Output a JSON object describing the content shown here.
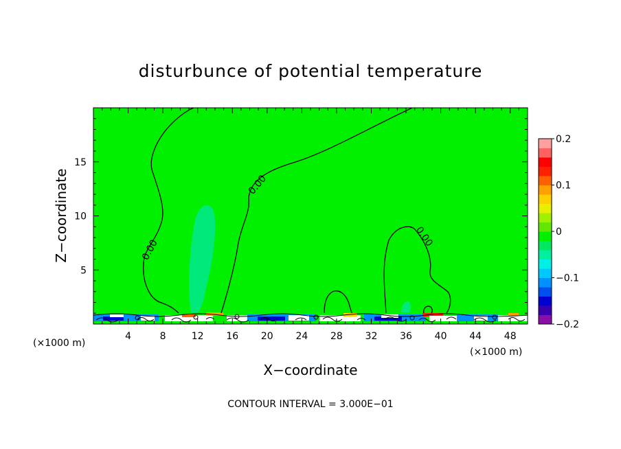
{
  "chart_data": {
    "type": "heatmap",
    "title": "disturbunce of potential temperature",
    "xlabel": "X−coordinate",
    "ylabel": "Z−coordinate",
    "x_unit_left": "(×1000 m)",
    "x_unit_right": "(×1000 m)",
    "xlim": [
      0,
      50
    ],
    "ylim": [
      0,
      20
    ],
    "x_ticks": [
      4,
      8,
      12,
      16,
      20,
      24,
      28,
      32,
      36,
      40,
      44,
      48
    ],
    "y_ticks": [
      5,
      10,
      15
    ],
    "contour_interval_text": "CONTOUR INTERVAL = 3.000E−01",
    "contour_label": "0.00",
    "field_value_main": 0.0,
    "colorbar": {
      "ticks": [
        {
          "value": 0.2,
          "label": "0.2"
        },
        {
          "value": 0.1,
          "label": "0.1"
        },
        {
          "value": 0,
          "label": "0"
        },
        {
          "value": -0.1,
          "label": "−0.1"
        },
        {
          "value": -0.2,
          "label": "−0.2"
        }
      ],
      "min": -0.2,
      "max": 0.2,
      "colors": [
        "#8a0fa8",
        "#3a00b0",
        "#0000d0",
        "#0050f0",
        "#0090ff",
        "#00c8ff",
        "#00f0e8",
        "#00f0a0",
        "#00e860",
        "#00f000",
        "#60e800",
        "#a0f000",
        "#e8f000",
        "#ffd000",
        "#ffa000",
        "#ff6000",
        "#ff2000",
        "#ff0000",
        "#ff6060",
        "#ffa0a0"
      ]
    },
    "background_color": "#00f000",
    "low_color": "#00e890",
    "grid": false
  }
}
